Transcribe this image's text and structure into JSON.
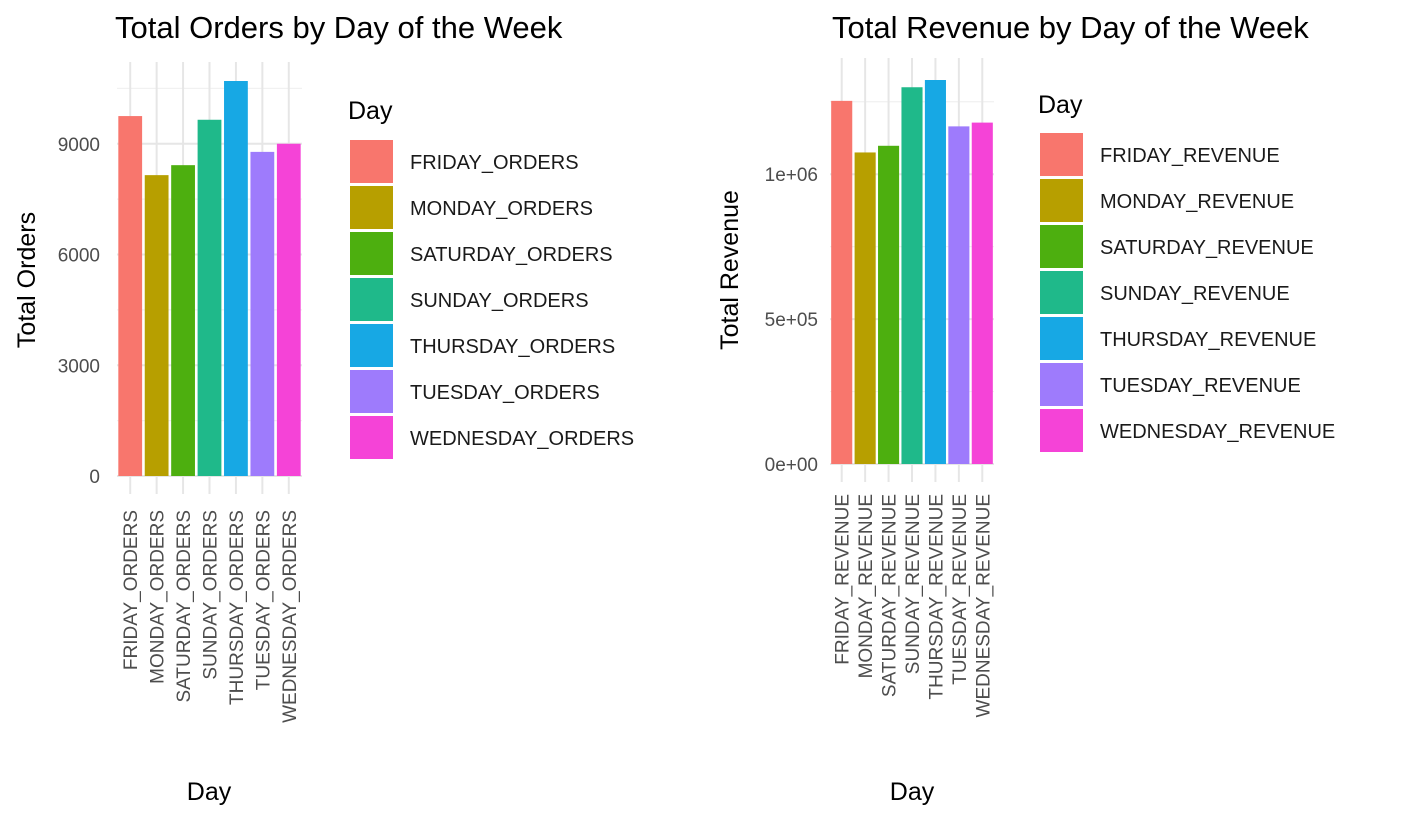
{
  "colors": [
    "#F8766D",
    "#B79F00",
    "#4DAF0F",
    "#1FB98A",
    "#17A8E4",
    "#9E7BFC",
    "#F543D7"
  ],
  "chart_data": [
    {
      "type": "bar",
      "title": "Total Orders by Day of the Week",
      "xlabel": "Day",
      "ylabel": "Total Orders",
      "categories": [
        "FRIDAY_ORDERS",
        "MONDAY_ORDERS",
        "SATURDAY_ORDERS",
        "SUNDAY_ORDERS",
        "THURSDAY_ORDERS",
        "TUESDAY_ORDERS",
        "WEDNESDAY_ORDERS"
      ],
      "values": [
        9750,
        8150,
        8420,
        9650,
        10700,
        8780,
        9000
      ],
      "ylim": [
        0,
        10700
      ],
      "yticks": [
        0,
        3000,
        6000,
        9000
      ],
      "ytick_labels": [
        "0",
        "3000",
        "6000",
        "9000"
      ],
      "legend_title": "Day",
      "legend_position": "right",
      "grid": true
    },
    {
      "type": "bar",
      "title": "Total Revenue by Day of the Week",
      "xlabel": "Day",
      "ylabel": "Total Revenue",
      "categories": [
        "FRIDAY_REVENUE",
        "MONDAY_REVENUE",
        "SATURDAY_REVENUE",
        "SUNDAY_REVENUE",
        "THURSDAY_REVENUE",
        "TUESDAY_REVENUE",
        "WEDNESDAY_REVENUE"
      ],
      "values": [
        1253000,
        1075000,
        1098000,
        1300000,
        1325000,
        1165000,
        1178000
      ],
      "ylim": [
        0,
        1325000
      ],
      "yticks": [
        0,
        500000,
        1000000
      ],
      "ytick_labels": [
        "0e+00",
        "5e+05",
        "1e+06"
      ],
      "legend_title": "Day",
      "legend_position": "right",
      "grid": true
    }
  ]
}
